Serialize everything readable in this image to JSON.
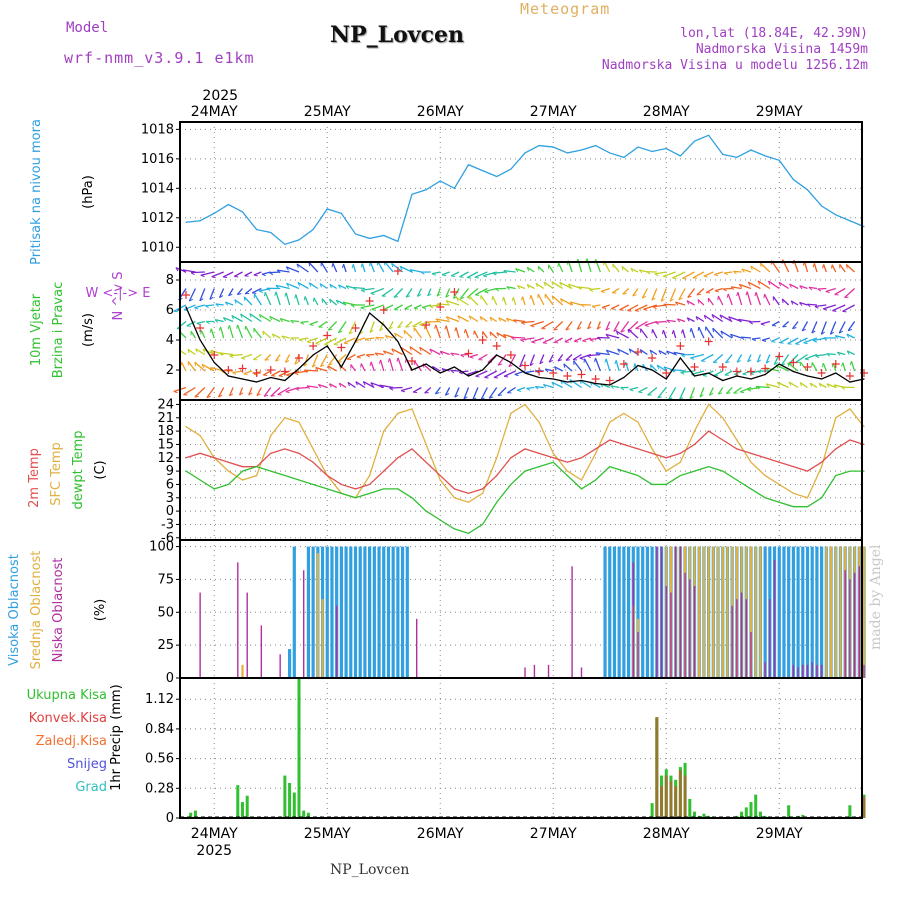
{
  "header": {
    "model_label": "Model",
    "model_value": "wrf-nmm_v3.9.1 e1km",
    "title": "NP_Lovcen",
    "meteogram": "Meteogram",
    "lonlat": "lon,lat (18.84E, 42.39N)",
    "elevation": "Nadmorska Visina 1459m",
    "elevation_model": "Nadmorska Visina u modelu 1256.12m"
  },
  "footer": {
    "station": "NP_Lovcen"
  },
  "watermark": "made by Angel",
  "colors": {
    "pressure": "#30a0e0",
    "wind_speed": "#000000",
    "wind_gust": "#e83030",
    "t2m": "#e05050",
    "tsfc": "#e0b040",
    "dewpt": "#30c030",
    "cloud_high": "#30a0e0",
    "cloud_mid": "#e0b040",
    "cloud_low": "#b030a0",
    "precip_total": "#30c030",
    "precip_conv": "#e04040",
    "precip_frozen": "#f07030",
    "snow": "#5050e0",
    "hail": "#30c0c0"
  },
  "chart_data": [
    {
      "type": "line",
      "panel": "pressure",
      "ylabel": "Pritisak na nivou mora",
      "unit": "(hPa)",
      "yticks": [
        1010,
        1012,
        1014,
        1016,
        1018
      ],
      "ylim": [
        1009,
        1018.5
      ],
      "grid": true,
      "x_dates": [
        "24MAY",
        "25MAY",
        "26MAY",
        "27MAY",
        "28MAY",
        "29MAY"
      ],
      "year": "2025",
      "x": [
        0,
        3,
        6,
        9,
        12,
        15,
        18,
        21,
        24,
        27,
        30,
        33,
        36,
        39,
        42,
        45,
        48,
        51,
        54,
        57,
        60,
        63,
        66,
        69,
        72,
        75,
        78,
        81,
        84,
        87,
        90,
        93,
        96,
        99,
        102,
        105,
        108,
        111,
        114,
        117,
        120,
        123,
        126,
        129,
        132,
        135,
        138,
        141,
        144
      ],
      "series": [
        {
          "values": [
            1011.7,
            1011.8,
            1012.3,
            1012.9,
            1012.4,
            1011.2,
            1011.0,
            1010.2,
            1010.5,
            1011.2,
            1012.6,
            1012.3,
            1010.9,
            1010.6,
            1010.8,
            1010.4,
            1013.6,
            1013.9,
            1014.5,
            1014.0,
            1015.6,
            1015.2,
            1014.8,
            1015.3,
            1016.4,
            1016.9,
            1016.8,
            1016.4,
            1016.6,
            1016.9,
            1016.4,
            1016.1,
            1016.8,
            1016.5,
            1016.7,
            1016.2,
            1017.2,
            1017.6,
            1016.3,
            1016.1,
            1016.6,
            1016.2,
            1015.9,
            1014.6,
            1013.9,
            1012.8,
            1012.2,
            1011.8,
            1011.4
          ]
        }
      ]
    },
    {
      "type": "line",
      "panel": "wind",
      "ylabel": [
        "10m Vjetar",
        "Brzina i Pravac"
      ],
      "unit": "(m/s)",
      "compass": "W <-|-> E",
      "compass_vertical": "N ^ v S",
      "yticks": [
        2,
        4,
        6,
        8
      ],
      "ylim": [
        0,
        9.2
      ],
      "grid": true,
      "x": [
        0,
        3,
        6,
        9,
        12,
        15,
        18,
        21,
        24,
        27,
        30,
        33,
        36,
        39,
        42,
        45,
        48,
        51,
        54,
        57,
        60,
        63,
        66,
        69,
        72,
        75,
        78,
        81,
        84,
        87,
        90,
        93,
        96,
        99,
        102,
        105,
        108,
        111,
        114,
        117,
        120,
        123,
        126,
        129,
        132,
        135,
        138,
        141,
        144
      ],
      "series": [
        {
          "values": [
            6.2,
            4.0,
            2.5,
            1.6,
            1.4,
            1.2,
            1.5,
            1.3,
            2.1,
            3.0,
            3.6,
            2.2,
            3.9,
            5.8,
            5.0,
            3.9,
            2.0,
            2.4,
            1.8,
            2.2,
            1.6,
            2.0,
            3.0,
            2.5,
            1.8,
            1.5,
            1.4,
            1.2,
            1.3,
            1.1,
            1.0,
            1.5,
            2.3,
            2.0,
            1.4,
            2.8,
            1.6,
            1.8,
            1.3,
            1.6,
            1.4,
            1.7,
            2.4,
            1.9,
            1.6,
            1.4,
            1.8,
            1.2,
            1.4
          ]
        },
        {
          "values": [
            7.0,
            4.8,
            3.0,
            2.0,
            2.1,
            1.8,
            2.0,
            1.9,
            2.8,
            3.6,
            4.3,
            3.5,
            4.8,
            6.6,
            6.0,
            8.6,
            2.6,
            5.0,
            6.2,
            7.2,
            3.1,
            4.0,
            3.6,
            3.0,
            2.3,
            1.9,
            1.8,
            1.6,
            1.7,
            1.4,
            1.3,
            2.4,
            3.2,
            2.8,
            1.8,
            3.6,
            2.2,
            3.9,
            2.2,
            1.9,
            1.9,
            2.1,
            2.9,
            2.5,
            2.2,
            1.8,
            2.4,
            1.6,
            1.8
          ]
        }
      ]
    },
    {
      "type": "line",
      "panel": "temperature",
      "ylabel": [
        "2m Temp",
        "SFC Temp",
        "dewpt Temp"
      ],
      "unit": "(C)",
      "yticks": [
        -6,
        -3,
        0,
        3,
        6,
        9,
        12,
        15,
        18,
        21,
        24
      ],
      "ylim": [
        -6.5,
        25
      ],
      "grid": true,
      "x": [
        0,
        3,
        6,
        9,
        12,
        15,
        18,
        21,
        24,
        27,
        30,
        33,
        36,
        39,
        42,
        45,
        48,
        51,
        54,
        57,
        60,
        63,
        66,
        69,
        72,
        75,
        78,
        81,
        84,
        87,
        90,
        93,
        96,
        99,
        102,
        105,
        108,
        111,
        114,
        117,
        120,
        123,
        126,
        129,
        132,
        135,
        138,
        141,
        144
      ],
      "series": [
        {
          "values": [
            12,
            13,
            12,
            11,
            10,
            10,
            13,
            14,
            13,
            11,
            8,
            6,
            5,
            6,
            9,
            12,
            14,
            11,
            8,
            5,
            4,
            5,
            8,
            12,
            14,
            13,
            12,
            11,
            12,
            14,
            16,
            15,
            14,
            13,
            12,
            13,
            15,
            18,
            16,
            14,
            13,
            12,
            11,
            10,
            9,
            11,
            14,
            16,
            15
          ]
        },
        {
          "values": [
            19,
            17,
            12,
            9,
            7,
            8,
            17,
            21,
            20,
            14,
            8,
            4,
            3,
            8,
            18,
            22,
            23,
            15,
            7,
            3,
            2,
            4,
            12,
            22,
            24,
            20,
            13,
            9,
            7,
            13,
            20,
            22,
            20,
            14,
            9,
            11,
            18,
            24,
            21,
            16,
            11,
            8,
            6,
            4,
            3,
            10,
            21,
            23,
            19
          ]
        },
        {
          "values": [
            9,
            7,
            5,
            6,
            9,
            10,
            9,
            8,
            7,
            6,
            5,
            4,
            3,
            4,
            5,
            5,
            3,
            0,
            -2,
            -4,
            -5,
            -3,
            2,
            6,
            9,
            10,
            11,
            8,
            5,
            7,
            10,
            9,
            8,
            6,
            6,
            8,
            9,
            10,
            9,
            7,
            5,
            3,
            2,
            1,
            1,
            3,
            8,
            9,
            9
          ]
        }
      ]
    },
    {
      "type": "bar",
      "panel": "clouds",
      "ylabel": [
        "Visoka Oblacnost",
        "Srednja Oblacnost",
        "Niska Oblacnost"
      ],
      "unit": "(%)",
      "yticks": [
        0,
        25,
        50,
        75,
        100
      ],
      "ylim": [
        0,
        105
      ],
      "grid": true,
      "series": [
        {
          "name": "Visoka Oblacnost",
          "x": [
            22,
            23,
            26,
            27,
            28,
            29,
            30,
            31,
            32,
            33,
            34,
            35,
            36,
            37,
            38,
            39,
            40,
            41,
            42,
            43,
            44,
            45,
            46,
            47,
            89,
            90,
            91,
            92,
            93,
            94,
            95,
            96,
            97,
            98,
            99,
            100,
            101,
            102,
            103,
            104,
            105,
            106,
            107,
            108,
            109,
            110,
            111,
            112,
            113,
            114,
            115,
            116,
            117,
            118,
            119,
            120,
            121,
            122,
            123,
            124,
            125,
            126,
            127,
            128,
            129,
            130,
            131,
            132,
            133,
            134,
            135,
            136,
            137,
            138,
            139,
            140,
            141,
            142,
            143,
            144
          ],
          "values": [
            22,
            100,
            100,
            100,
            100,
            100,
            100,
            100,
            100,
            100,
            100,
            100,
            100,
            100,
            100,
            100,
            100,
            100,
            100,
            100,
            100,
            100,
            100,
            100,
            100,
            100,
            100,
            100,
            100,
            100,
            100,
            100,
            100,
            100,
            100,
            100,
            100,
            100,
            100,
            100,
            100,
            100,
            100,
            100,
            100,
            100,
            100,
            100,
            100,
            100,
            100,
            100,
            100,
            100,
            100,
            100,
            100,
            100,
            100,
            100,
            100,
            100,
            100,
            100,
            100,
            100,
            100,
            100,
            100,
            100,
            100,
            100,
            100,
            100,
            100,
            100,
            100,
            100,
            100,
            100
          ]
        },
        {
          "name": "Srednja Oblacnost",
          "x": [
            12,
            28,
            29,
            95,
            96,
            102,
            103,
            104,
            105,
            106,
            107,
            108,
            109,
            110,
            111,
            112,
            113,
            114,
            115,
            116,
            117,
            118,
            119,
            120,
            121,
            122,
            136,
            137,
            138,
            139,
            140,
            141,
            142,
            143,
            144
          ],
          "values": [
            10,
            95,
            60,
            55,
            45,
            100,
            100,
            100,
            100,
            100,
            100,
            100,
            100,
            100,
            100,
            100,
            100,
            100,
            100,
            100,
            100,
            100,
            100,
            100,
            100,
            100,
            100,
            100,
            100,
            100,
            100,
            100,
            100,
            100,
            100
          ]
        },
        {
          "name": "Niska Oblacnost",
          "x": [
            3,
            11,
            13,
            16,
            20,
            25,
            32,
            49,
            72,
            74,
            77,
            82,
            84,
            95,
            96,
            100,
            101,
            102,
            103,
            104,
            105,
            106,
            107,
            108,
            116,
            117,
            118,
            119,
            120,
            123,
            124,
            125,
            129,
            130,
            131,
            132,
            133,
            134,
            135,
            140,
            141,
            142,
            143,
            144
          ],
          "values": [
            65,
            88,
            65,
            40,
            18,
            82,
            55,
            45,
            8,
            10,
            10,
            85,
            8,
            88,
            35,
            100,
            100,
            70,
            65,
            100,
            100,
            80,
            75,
            70,
            55,
            60,
            65,
            60,
            35,
            12,
            60,
            90,
            10,
            8,
            10,
            10,
            12,
            10,
            10,
            82,
            75,
            80,
            85,
            10
          ]
        }
      ]
    },
    {
      "type": "bar",
      "panel": "precipitation",
      "legend": [
        "Ukupna Kisa",
        "Konvek.Kisa",
        "Zaledj.Kisa",
        "Snijeg",
        "Grad"
      ],
      "ylabel": "1hr Precip",
      "unit": "(mm)",
      "yticks": [
        0,
        0.28,
        0.56,
        0.84,
        1.12
      ],
      "ylim": [
        0,
        1.32
      ],
      "grid": true,
      "x_dates": [
        "24MAY",
        "25MAY",
        "26MAY",
        "27MAY",
        "28MAY",
        "29MAY"
      ],
      "year": "2025",
      "series": [
        {
          "name": "Ukupna Kisa",
          "x": [
            1,
            2,
            11,
            12,
            13,
            21,
            22,
            23,
            24,
            25,
            26,
            99,
            100,
            101,
            102,
            103,
            104,
            105,
            106,
            107,
            108,
            109,
            110,
            111,
            117,
            118,
            119,
            120,
            121,
            122,
            123,
            128,
            130,
            131,
            141,
            144
          ],
          "values": [
            0.05,
            0.07,
            0.31,
            0.15,
            0.21,
            0.4,
            0.33,
            0.24,
            1.32,
            0.07,
            0.05,
            0.14,
            0.95,
            0.4,
            0.46,
            0.4,
            0.36,
            0.48,
            0.52,
            0.18,
            0.06,
            0.02,
            0.04,
            0.02,
            0.02,
            0.06,
            0.1,
            0.15,
            0.22,
            0.06,
            0.02,
            0.12,
            0.02,
            0.03,
            0.12,
            0.22
          ]
        },
        {
          "name": "Konvek.Kisa",
          "x": [
            100,
            101,
            102,
            103,
            104,
            105,
            106,
            144
          ],
          "values": [
            0.95,
            0.3,
            0.4,
            0.35,
            0.3,
            0.45,
            0.4,
            0.2
          ]
        }
      ]
    }
  ]
}
